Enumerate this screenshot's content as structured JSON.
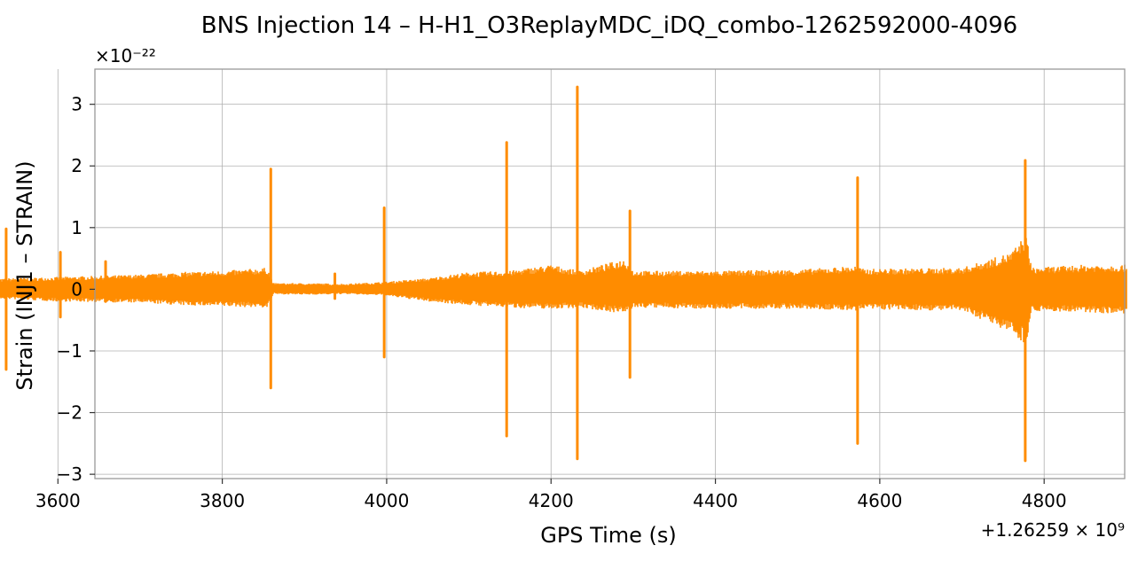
{
  "chart_data": {
    "type": "line",
    "title": "BNS Injection 14 – H-H1_O3ReplayMDC_iDQ_combo-1262592000-4096",
    "xlabel": "GPS Time (s)",
    "ylabel": "Strain (INJ1 – STRAIN)",
    "x_offset_label": "+1.26259 × 10⁹",
    "y_scale_label": "×10⁻²²",
    "xlim": [
      3645,
      4898
    ],
    "ylim": [
      -3.07,
      3.57
    ],
    "x_ticks": [
      {
        "value": 3600,
        "label": "3600"
      },
      {
        "value": 3800,
        "label": "3800"
      },
      {
        "value": 4000,
        "label": "4000"
      },
      {
        "value": 4200,
        "label": "4200"
      },
      {
        "value": 4400,
        "label": "4400"
      },
      {
        "value": 4600,
        "label": "4600"
      },
      {
        "value": 4800,
        "label": "4800"
      }
    ],
    "y_ticks": [
      {
        "value": 3,
        "label": "3"
      },
      {
        "value": 2,
        "label": "2"
      },
      {
        "value": 1,
        "label": "1"
      },
      {
        "value": 0,
        "label": "0"
      },
      {
        "value": -1,
        "label": "−1"
      },
      {
        "value": -2,
        "label": "−2"
      },
      {
        "value": -3,
        "label": "−3"
      }
    ],
    "grid": true,
    "series": [
      {
        "color": "#ff8c00",
        "x_range": [
          3520,
          4900
        ],
        "envelope": [
          {
            "x": 3520,
            "upper": 0.15,
            "lower": -0.15
          },
          {
            "x": 3540,
            "upper": 0.18,
            "lower": -0.16
          },
          {
            "x": 3600,
            "upper": 0.2,
            "lower": -0.2
          },
          {
            "x": 3650,
            "upper": 0.22,
            "lower": -0.21
          },
          {
            "x": 3700,
            "upper": 0.24,
            "lower": -0.22
          },
          {
            "x": 3750,
            "upper": 0.28,
            "lower": -0.26
          },
          {
            "x": 3800,
            "upper": 0.3,
            "lower": -0.28
          },
          {
            "x": 3855,
            "upper": 0.35,
            "lower": -0.3
          },
          {
            "x": 3862,
            "upper": 0.1,
            "lower": -0.08
          },
          {
            "x": 3900,
            "upper": 0.1,
            "lower": -0.09
          },
          {
            "x": 3950,
            "upper": 0.09,
            "lower": -0.08
          },
          {
            "x": 3995,
            "upper": 0.12,
            "lower": -0.1
          },
          {
            "x": 4050,
            "upper": 0.18,
            "lower": -0.2
          },
          {
            "x": 4100,
            "upper": 0.28,
            "lower": -0.26
          },
          {
            "x": 4150,
            "upper": 0.3,
            "lower": -0.3
          },
          {
            "x": 4200,
            "upper": 0.4,
            "lower": -0.32
          },
          {
            "x": 4235,
            "upper": 0.3,
            "lower": -0.3
          },
          {
            "x": 4290,
            "upper": 0.5,
            "lower": -0.4
          },
          {
            "x": 4300,
            "upper": 0.3,
            "lower": -0.3
          },
          {
            "x": 4400,
            "upper": 0.3,
            "lower": -0.32
          },
          {
            "x": 4500,
            "upper": 0.32,
            "lower": -0.32
          },
          {
            "x": 4570,
            "upper": 0.38,
            "lower": -0.35
          },
          {
            "x": 4580,
            "upper": 0.33,
            "lower": -0.33
          },
          {
            "x": 4700,
            "upper": 0.35,
            "lower": -0.35
          },
          {
            "x": 4760,
            "upper": 0.6,
            "lower": -0.7
          },
          {
            "x": 4778,
            "upper": 0.9,
            "lower": -0.9
          },
          {
            "x": 4785,
            "upper": 0.35,
            "lower": -0.35
          },
          {
            "x": 4850,
            "upper": 0.4,
            "lower": -0.38
          },
          {
            "x": 4900,
            "upper": 0.4,
            "lower": -0.4
          }
        ],
        "spikes": [
          {
            "x": 3537,
            "max": 0.98,
            "min": -1.3
          },
          {
            "x": 3603,
            "max": 0.6,
            "min": -0.45
          },
          {
            "x": 3658,
            "max": 0.45,
            "min": -0.2
          },
          {
            "x": 3859,
            "max": 1.95,
            "min": -1.6
          },
          {
            "x": 3937,
            "max": 0.25,
            "min": -0.15
          },
          {
            "x": 3997,
            "max": 1.32,
            "min": -1.1
          },
          {
            "x": 4146,
            "max": 2.38,
            "min": -2.38
          },
          {
            "x": 4232,
            "max": 3.28,
            "min": -2.75
          },
          {
            "x": 4296,
            "max": 1.27,
            "min": -1.43
          },
          {
            "x": 4573,
            "max": 1.81,
            "min": -2.5
          },
          {
            "x": 4777,
            "max": 2.09,
            "min": -2.78
          }
        ]
      }
    ]
  }
}
